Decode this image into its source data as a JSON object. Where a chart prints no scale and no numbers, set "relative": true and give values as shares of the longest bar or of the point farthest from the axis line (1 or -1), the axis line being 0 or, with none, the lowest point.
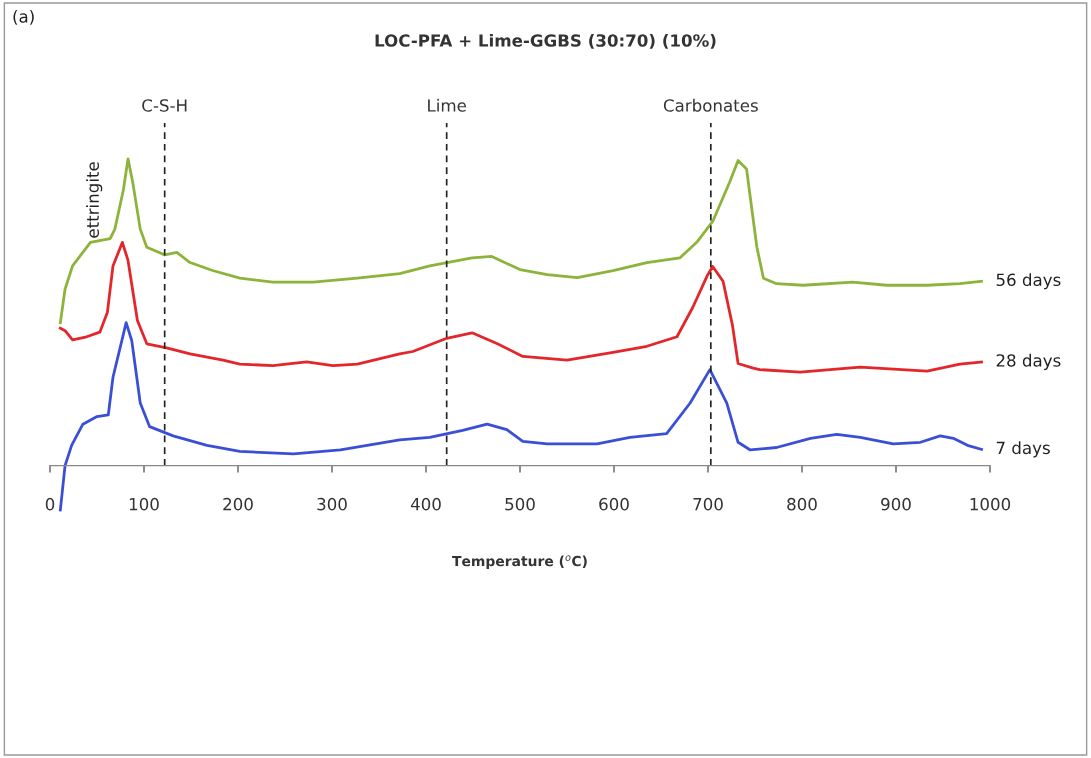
{
  "chart_data": {
    "type": "line",
    "relative": true,
    "title": "LOC-PFA + Lime-GGBS (30:70) (10%)",
    "xlabel": "Temperature ($^{o}$C)",
    "xlim": [
      0,
      1000
    ],
    "xticks": [
      0,
      100,
      200,
      300,
      400,
      500,
      600,
      700,
      800,
      900,
      1000
    ],
    "tick_labels": "x",
    "grid": false,
    "marker": "none",
    "line_style": "solid",
    "series": [
      {
        "name": "56 days",
        "color": "#8db33a",
        "x": [
          11,
          16,
          24,
          43,
          64,
          69,
          78,
          83,
          88,
          96,
          103,
          122,
          135,
          149,
          173,
          202,
          237,
          280,
          327,
          372,
          404,
          449,
          470,
          500,
          529,
          561,
          599,
          635,
          670,
          688,
          705,
          723,
          732,
          741,
          752,
          759,
          773,
          801,
          854,
          890,
          933,
          968,
          991
        ],
        "values": [
          0.466,
          0.575,
          0.651,
          0.728,
          0.74,
          0.771,
          0.898,
          1.0,
          0.924,
          0.771,
          0.712,
          0.687,
          0.695,
          0.662,
          0.636,
          0.611,
          0.598,
          0.598,
          0.611,
          0.626,
          0.651,
          0.677,
          0.682,
          0.639,
          0.623,
          0.613,
          0.636,
          0.662,
          0.677,
          0.728,
          0.796,
          0.924,
          0.995,
          0.967,
          0.712,
          0.611,
          0.593,
          0.588,
          0.598,
          0.588,
          0.588,
          0.593,
          0.601
        ]
      },
      {
        "name": "28 days",
        "color": "#e3262a",
        "x": [
          11,
          16,
          24,
          39,
          53,
          61,
          67,
          77,
          83,
          93,
          103,
          124,
          149,
          184,
          202,
          237,
          273,
          301,
          327,
          372,
          386,
          422,
          449,
          476,
          503,
          550,
          599,
          635,
          667,
          684,
          699,
          705,
          716,
          726,
          732,
          748,
          755,
          798,
          862,
          933,
          968,
          991
        ],
        "values": [
          0.448,
          0.44,
          0.41,
          0.42,
          0.435,
          0.499,
          0.651,
          0.728,
          0.669,
          0.473,
          0.397,
          0.384,
          0.364,
          0.344,
          0.331,
          0.326,
          0.338,
          0.326,
          0.331,
          0.364,
          0.372,
          0.415,
          0.433,
          0.397,
          0.356,
          0.344,
          0.369,
          0.389,
          0.42,
          0.517,
          0.618,
          0.649,
          0.601,
          0.458,
          0.333,
          0.318,
          0.313,
          0.305,
          0.321,
          0.308,
          0.331,
          0.338
        ]
      },
      {
        "name": "7 days",
        "color": "#3a4fd6",
        "x": [
          11,
          16,
          23,
          35,
          50,
          62,
          67,
          77,
          81,
          87,
          96,
          106,
          131,
          167,
          202,
          259,
          309,
          372,
          404,
          439,
          465,
          486,
          503,
          529,
          582,
          617,
          656,
          681,
          702,
          720,
          732,
          745,
          773,
          809,
          837,
          862,
          897,
          926,
          947,
          961,
          976,
          991
        ],
        "values": [
          -0.145,
          0,
          0.066,
          0.135,
          0.16,
          0.165,
          0.288,
          0.415,
          0.466,
          0.407,
          0.204,
          0.127,
          0.097,
          0.066,
          0.046,
          0.038,
          0.051,
          0.084,
          0.092,
          0.115,
          0.135,
          0.117,
          0.079,
          0.071,
          0.071,
          0.092,
          0.104,
          0.204,
          0.313,
          0.204,
          0.076,
          0.051,
          0.059,
          0.089,
          0.102,
          0.092,
          0.071,
          0.076,
          0.097,
          0.089,
          0.066,
          0.053
        ]
      }
    ],
    "ref_lines": [
      {
        "axis": "x",
        "value": 122,
        "label": "C-S-H",
        "color": "#222222",
        "line_style": "dashed"
      },
      {
        "axis": "x",
        "value": 422,
        "label": "Lime",
        "color": "#222222",
        "line_style": "dashed"
      },
      {
        "axis": "x",
        "value": 703,
        "label": "Carbonates",
        "color": "#222222",
        "line_style": "dashed"
      }
    ],
    "annotations": [
      "(a)",
      {
        "text": "ettringite",
        "x": 47,
        "y": 0.74
      }
    ]
  }
}
